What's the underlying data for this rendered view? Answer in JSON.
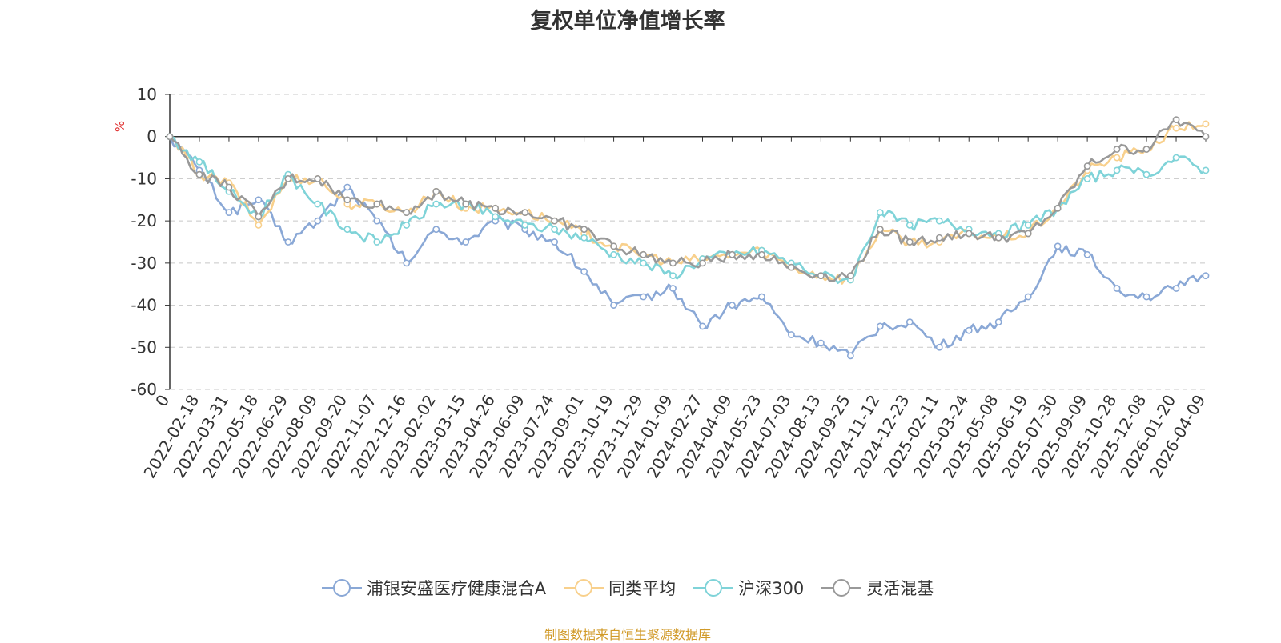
{
  "chart_data": {
    "type": "line",
    "title": "复权单位净值增长率",
    "ylabel": "%",
    "ylim": [
      -60,
      10
    ],
    "yticks": [
      10,
      0,
      -10,
      -20,
      -30,
      -40,
      -50,
      -60
    ],
    "grid": true,
    "legend_position": "bottom",
    "x_tick_labels": [
      "0",
      "2022-02-18",
      "2022-03-31",
      "2022-05-18",
      "2022-06-29",
      "2022-08-09",
      "2022-09-20",
      "2022-11-07",
      "2022-12-16",
      "2023-02-02",
      "2023-03-15",
      "2023-04-26",
      "2023-06-09",
      "2023-07-24",
      "2023-09-01",
      "2023-10-19",
      "2023-11-29",
      "2024-01-09",
      "2024-02-27",
      "2024-04-09",
      "2024-05-23",
      "2024-07-03",
      "2024-08-13",
      "2024-09-25",
      "2024-11-12",
      "2024-12-23",
      "2025-02-11",
      "2025-03-24",
      "2025-05-08",
      "2025-06-19",
      "2025-07-30",
      "2025-09-09",
      "2025-10-28",
      "2025-12-08",
      "2026-01-20",
      "2026-04-09"
    ],
    "x": [
      "0",
      "2022-02-18",
      "2022-03-31",
      "2022-05-18",
      "2022-06-29",
      "2022-08-09",
      "2022-09-20",
      "2022-11-07",
      "2022-12-16",
      "2023-02-02",
      "2023-03-15",
      "2023-04-26",
      "2023-06-09",
      "2023-07-24",
      "2023-09-01",
      "2023-10-19",
      "2023-11-29",
      "2024-01-09",
      "2024-02-27",
      "2024-04-09",
      "2024-05-23",
      "2024-07-03",
      "2024-08-13",
      "2024-09-25",
      "2024-11-12",
      "2024-12-23",
      "2025-02-11",
      "2025-03-24",
      "2025-05-08",
      "2025-06-19",
      "2025-07-30",
      "2025-09-09",
      "2025-10-28",
      "2025-12-08",
      "2026-01-20",
      "2026-04-09"
    ],
    "series": [
      {
        "name": "浦银安盛医疗健康混合A",
        "color": "#8aa8d6",
        "values": [
          0,
          -8,
          -18,
          -15,
          -25,
          -20,
          -12,
          -20,
          -30,
          -22,
          -25,
          -20,
          -22,
          -25,
          -32,
          -40,
          -38,
          -36,
          -45,
          -40,
          -38,
          -47,
          -49,
          -52,
          -45,
          -44,
          -50,
          -46,
          -44,
          -38,
          -26,
          -28,
          -36,
          -38,
          -36,
          -33
        ]
      },
      {
        "name": "同类平均",
        "color": "#f8d08c",
        "values": [
          0,
          -9,
          -11,
          -21,
          -10,
          -10,
          -16,
          -16,
          -18,
          -13,
          -17,
          -17,
          -18,
          -20,
          -23,
          -26,
          -28,
          -30,
          -29,
          -28,
          -27,
          -31,
          -33,
          -34,
          -22,
          -25,
          -25,
          -23,
          -24,
          -23,
          -17,
          -8,
          -5,
          -3,
          2,
          3
        ]
      },
      {
        "name": "沪深300",
        "color": "#7fd3d8",
        "values": [
          0,
          -6,
          -13,
          -19,
          -9,
          -16,
          -22,
          -25,
          -21,
          -16,
          -16,
          -19,
          -21,
          -22,
          -24,
          -28,
          -30,
          -33,
          -29,
          -28,
          -27,
          -30,
          -33,
          -34,
          -18,
          -21,
          -20,
          -22,
          -23,
          -21,
          -17,
          -10,
          -8,
          -9,
          -5,
          -8
        ]
      },
      {
        "name": "灵活混基",
        "color": "#999999",
        "values": [
          0,
          -9,
          -12,
          -19,
          -10,
          -10,
          -15,
          -16,
          -18,
          -13,
          -16,
          -17,
          -18,
          -20,
          -22,
          -26,
          -28,
          -30,
          -30,
          -28,
          -28,
          -31,
          -33,
          -33,
          -22,
          -25,
          -24,
          -23,
          -24,
          -23,
          -17,
          -7,
          -3,
          -3,
          4,
          0
        ]
      }
    ]
  },
  "source_text": "制图数据来自恒生聚源数据库"
}
